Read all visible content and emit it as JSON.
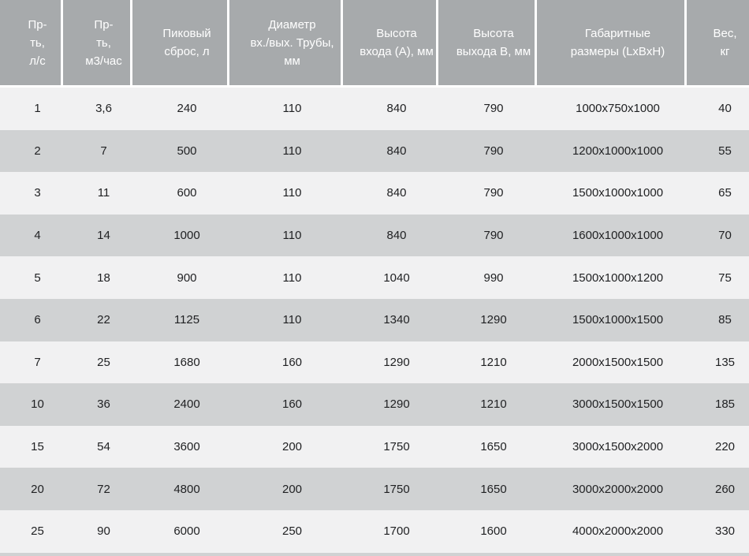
{
  "colors": {
    "header_bg": "#a7aaac",
    "header_text": "#ffffff",
    "row_light": "#f1f1f2",
    "row_dark": "#d0d2d3",
    "body_text": "#1f2022",
    "separator": "#ffffff"
  },
  "table": {
    "header_display": [
      "Пр-\nть,\nл/с",
      "Пр-\nть,\nм3/час",
      "Пиковый\nсброс, л",
      "Диаметр\nвх./вых. Трубы,\nмм",
      "Высота\nвхода (А), мм",
      "Высота\nвыхода В, мм",
      "Габаритные\nразмеры (LxBxH)",
      "Вес,\nкг"
    ]
  },
  "chart_data": {
    "type": "table",
    "title": "",
    "columns": [
      "Пр-ть, л/с",
      "Пр-ть, м3/час",
      "Пиковый сброс, л",
      "Диаметр вх./вых. Трубы, мм",
      "Высота входа (А), мм",
      "Высота выхода В, мм",
      "Габаритные размеры (LxBxH)",
      "Вес, кг"
    ],
    "rows": [
      [
        "1",
        "3,6",
        "240",
        "110",
        "840",
        "790",
        "1000x750x1000",
        "40"
      ],
      [
        "2",
        "7",
        "500",
        "110",
        "840",
        "790",
        "1200x1000x1000",
        "55"
      ],
      [
        "3",
        "11",
        "600",
        "110",
        "840",
        "790",
        "1500x1000x1000",
        "65"
      ],
      [
        "4",
        "14",
        "1000",
        "110",
        "840",
        "790",
        "1600x1000x1000",
        "70"
      ],
      [
        "5",
        "18",
        "900",
        "110",
        "1040",
        "990",
        "1500x1000x1200",
        "75"
      ],
      [
        "6",
        "22",
        "1125",
        "110",
        "1340",
        "1290",
        "1500x1000x1500",
        "85"
      ],
      [
        "7",
        "25",
        "1680",
        "160",
        "1290",
        "1210",
        "2000x1500x1500",
        "135"
      ],
      [
        "10",
        "36",
        "2400",
        "160",
        "1290",
        "1210",
        "3000x1500x1500",
        "185"
      ],
      [
        "15",
        "54",
        "3600",
        "200",
        "1750",
        "1650",
        "3000x1500x2000",
        "220"
      ],
      [
        "20",
        "72",
        "4800",
        "200",
        "1750",
        "1650",
        "3000x2000x2000",
        "260"
      ],
      [
        "25",
        "90",
        "6000",
        "250",
        "1700",
        "1600",
        "4000x2000x2000",
        "330"
      ]
    ],
    "layout": {
      "header_position": "top",
      "row_striping": "light-dark-alternating",
      "column_separators": "header-only"
    }
  }
}
